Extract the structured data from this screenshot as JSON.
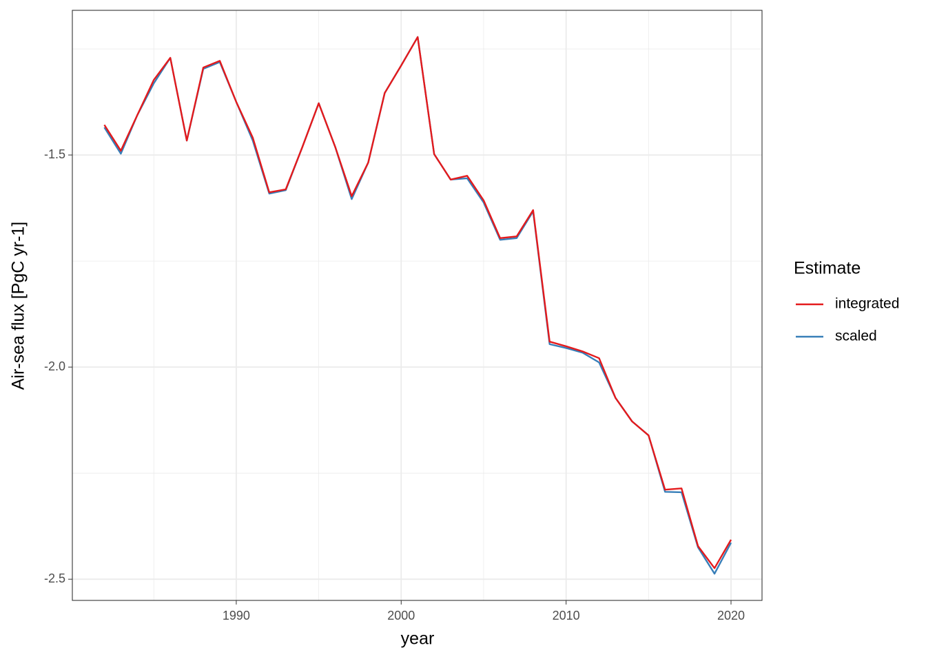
{
  "chart_data": {
    "type": "line",
    "x_label": "year",
    "y_label": "Air-sea flux [PgC yr-1]",
    "legend_title": "Estimate",
    "x": [
      1982,
      1983,
      1984,
      1985,
      1986,
      1987,
      1988,
      1989,
      1990,
      1991,
      1992,
      1993,
      1994,
      1995,
      1996,
      1997,
      1998,
      1999,
      2000,
      2001,
      2002,
      2003,
      2004,
      2005,
      2006,
      2007,
      2008,
      2009,
      2010,
      2011,
      2012,
      2013,
      2014,
      2015,
      2016,
      2017,
      2018,
      2019,
      2020
    ],
    "series": [
      {
        "name": "integrated",
        "color": "#e41a1c",
        "values": [
          -1.429,
          -1.49,
          -1.406,
          -1.323,
          -1.271,
          -1.466,
          -1.294,
          -1.278,
          -1.375,
          -1.459,
          -1.588,
          -1.581,
          -1.482,
          -1.378,
          -1.481,
          -1.597,
          -1.518,
          -1.354,
          -1.289,
          -1.222,
          -1.498,
          -1.558,
          -1.549,
          -1.607,
          -1.696,
          -1.692,
          -1.63,
          -1.94,
          -1.951,
          -1.963,
          -1.979,
          -2.073,
          -2.128,
          -2.161,
          -2.289,
          -2.286,
          -2.422,
          -2.474,
          -2.407
        ]
      },
      {
        "name": "scaled",
        "color": "#377eb8",
        "values": [
          -1.435,
          -1.497,
          -1.406,
          -1.331,
          -1.271,
          -1.466,
          -1.297,
          -1.281,
          -1.375,
          -1.466,
          -1.591,
          -1.583,
          -1.482,
          -1.378,
          -1.481,
          -1.604,
          -1.518,
          -1.354,
          -1.289,
          -1.222,
          -1.498,
          -1.558,
          -1.555,
          -1.612,
          -1.7,
          -1.696,
          -1.633,
          -1.946,
          -1.955,
          -1.966,
          -1.989,
          -2.073,
          -2.128,
          -2.161,
          -2.294,
          -2.295,
          -2.425,
          -2.487,
          -2.414
        ]
      }
    ],
    "xlim": [
      1980.06,
      2021.88
    ],
    "xticks": [
      1990,
      2000,
      2010,
      2020
    ],
    "ylim": [
      -2.55,
      -1.159
    ],
    "yticks": [
      {
        "value": -2.5,
        "label": "-2.5"
      },
      {
        "value": -2.0,
        "label": "-2.0"
      },
      {
        "value": -1.5,
        "label": "-1.5"
      }
    ],
    "grid": true,
    "legend_position": "right"
  }
}
